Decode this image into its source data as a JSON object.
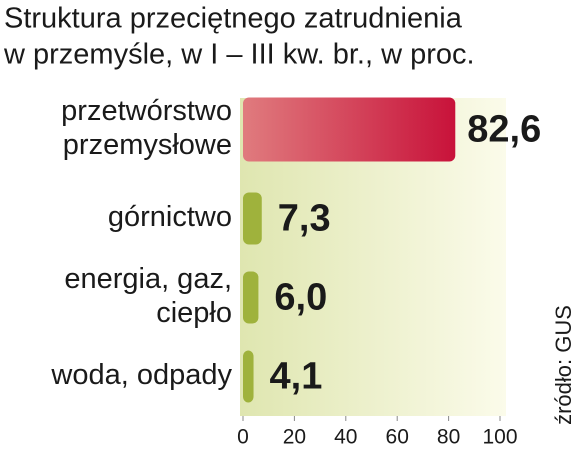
{
  "chart_data": {
    "type": "bar",
    "orientation": "horizontal",
    "title": [
      "Struktura przeciętnego zatrudnienia",
      "w przemyśle, w I – III kw. br., w proc."
    ],
    "categories": [
      [
        "przetwórstwo",
        "przemysłowe"
      ],
      [
        "górnictwo"
      ],
      [
        "energia, gaz,",
        "ciepło"
      ],
      [
        "woda, odpady"
      ]
    ],
    "values": [
      82.6,
      7.3,
      6.0,
      4.1
    ],
    "value_labels": [
      "82,6",
      "7,3",
      "6,0",
      "4,1"
    ],
    "colors": [
      "#c8123a",
      "#9fb23c",
      "#9fb23c",
      "#9fb23c"
    ],
    "label_colors": [
      "#c8123a",
      "#1a1a1a",
      "#1a1a1a",
      "#1a1a1a"
    ],
    "xlim": [
      0,
      100
    ],
    "xticks": [
      0,
      20,
      40,
      60,
      80,
      100
    ],
    "source": "źródło: GUS"
  }
}
